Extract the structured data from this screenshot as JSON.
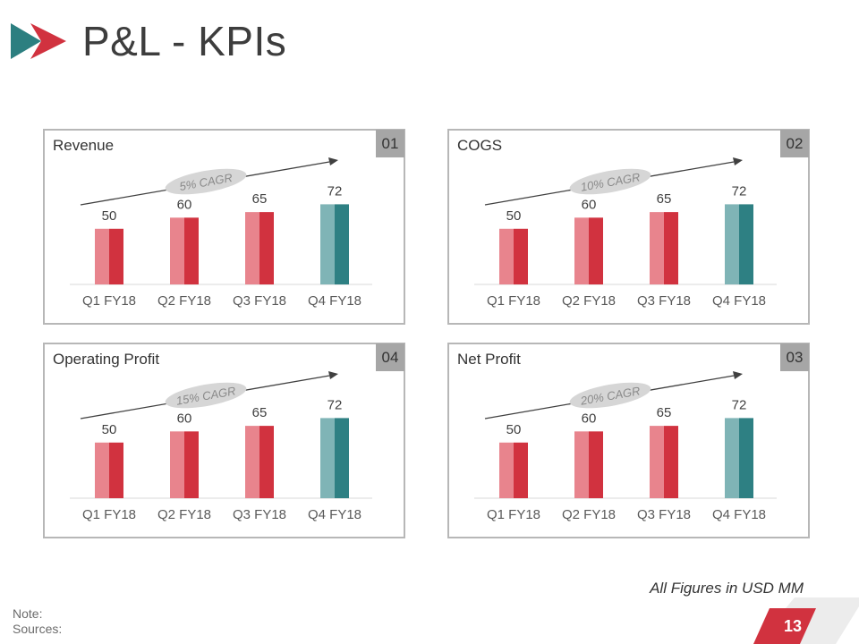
{
  "page": {
    "title": "P&L - KPIs",
    "units_note": "All Figures in USD MM",
    "note_label": "Note:",
    "sources_label": "Sources:",
    "page_number": "13"
  },
  "colors": {
    "red": "#d1323f",
    "red_light": "#e8848d",
    "teal": "#2e8083",
    "teal_light": "#7fb4b6",
    "box_grey": "#a6a6a6",
    "teal_mark": "#2c7f80"
  },
  "panels": [
    {
      "title": "Revenue",
      "number": "01",
      "cagr": "5% CAGR",
      "chart_data": {
        "type": "bar",
        "categories": [
          "Q1 FY18",
          "Q2 FY18",
          "Q3 FY18",
          "Q4 FY18"
        ],
        "values": [
          50,
          60,
          65,
          72
        ],
        "ylim": [
          0,
          90
        ],
        "annotation": "5% CAGR"
      }
    },
    {
      "title": "COGS",
      "number": "02",
      "cagr": "10% CAGR",
      "chart_data": {
        "type": "bar",
        "categories": [
          "Q1 FY18",
          "Q2 FY18",
          "Q3 FY18",
          "Q4 FY18"
        ],
        "values": [
          50,
          60,
          65,
          72
        ],
        "ylim": [
          0,
          90
        ],
        "annotation": "10% CAGR"
      }
    },
    {
      "title": "Operating Profit",
      "number": "04",
      "cagr": "15% CAGR",
      "chart_data": {
        "type": "bar",
        "categories": [
          "Q1 FY18",
          "Q2 FY18",
          "Q3 FY18",
          "Q4 FY18"
        ],
        "values": [
          50,
          60,
          65,
          72
        ],
        "ylim": [
          0,
          90
        ],
        "annotation": "15% CAGR"
      }
    },
    {
      "title": "Net Profit",
      "number": "03",
      "cagr": "20% CAGR",
      "chart_data": {
        "type": "bar",
        "categories": [
          "Q1 FY18",
          "Q2 FY18",
          "Q3 FY18",
          "Q4 FY18"
        ],
        "values": [
          50,
          60,
          65,
          72
        ],
        "ylim": [
          0,
          90
        ],
        "annotation": "20% CAGR"
      }
    }
  ]
}
